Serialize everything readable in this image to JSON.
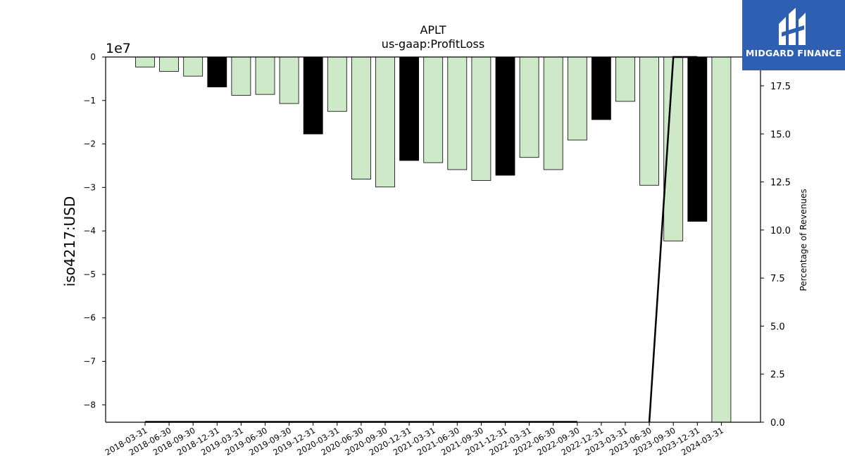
{
  "chart_data": {
    "type": "bar",
    "title": "APLT",
    "subtitle": "us-gaap:ProfitLoss",
    "ylabel": "iso4217:USD",
    "y_offset_label": "1e7",
    "y2label": "Percentage of Revenues",
    "ylim": [
      -8.4,
      0
    ],
    "y_ticks": [
      "0",
      "−1",
      "−2",
      "−3",
      "−4",
      "−5",
      "−6",
      "−7",
      "−8"
    ],
    "y2lim": [
      0,
      19
    ],
    "y2_ticks": [
      "0.0",
      "2.5",
      "5.0",
      "7.5",
      "10.0",
      "12.5",
      "15.0",
      "17.5"
    ],
    "categories": [
      "2018-03-31",
      "2018-06-30",
      "2018-09-30",
      "2018-12-31",
      "2019-03-31",
      "2019-06-30",
      "2019-09-30",
      "2019-12-31",
      "2020-03-31",
      "2020-06-30",
      "2020-09-30",
      "2020-12-31",
      "2021-03-31",
      "2021-06-30",
      "2021-09-30",
      "2021-12-31",
      "2022-03-31",
      "2022-06-30",
      "2022-09-30",
      "2022-12-31",
      "2023-03-31",
      "2023-06-30",
      "2023-09-30",
      "2023-12-31",
      "2024-03-31"
    ],
    "values": [
      -0.23,
      -0.33,
      -0.44,
      -0.69,
      -0.88,
      -0.86,
      -1.07,
      -1.77,
      -1.25,
      -2.81,
      -2.99,
      -2.38,
      -2.43,
      -2.59,
      -2.84,
      -2.72,
      -2.31,
      -2.59,
      -1.91,
      -1.44,
      -1.02,
      -2.95,
      -4.23,
      -3.78,
      -8.4
    ],
    "highlight": [
      false,
      false,
      false,
      true,
      false,
      false,
      false,
      true,
      false,
      false,
      false,
      true,
      false,
      false,
      false,
      true,
      false,
      false,
      false,
      true,
      false,
      false,
      false,
      true,
      false
    ],
    "pct_of_revenues": [
      0,
      0,
      0,
      0,
      0,
      0,
      0,
      0,
      0,
      0,
      0,
      0,
      0,
      0,
      0,
      0,
      0,
      0,
      0,
      null,
      null,
      0,
      19,
      19,
      null
    ],
    "colors": {
      "quarter": "#cde9c7",
      "annual": "#000000",
      "edge": "#000000",
      "pct_line": "#000000",
      "logo_bg": "#2f5fb3"
    }
  },
  "logo": {
    "text": "MIDGARD FINANCE"
  }
}
